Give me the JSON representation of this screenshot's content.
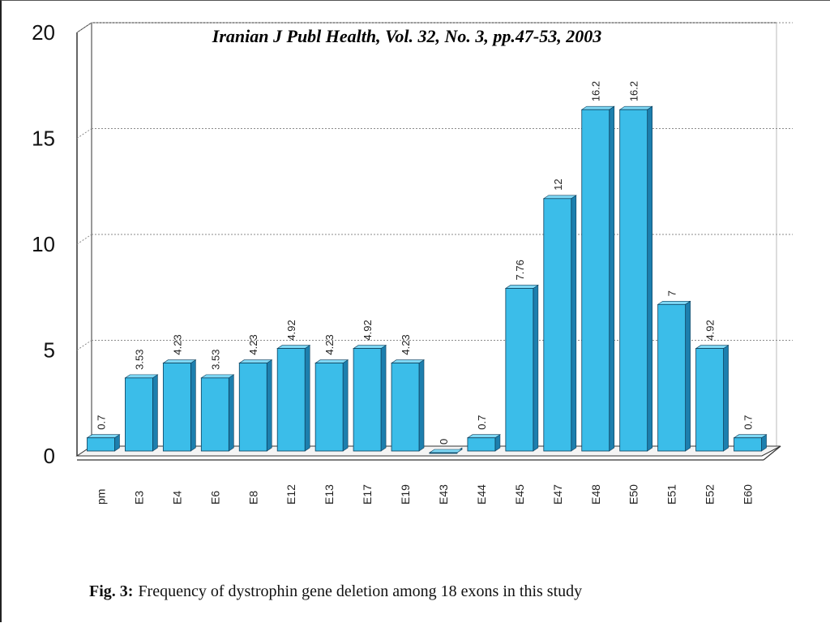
{
  "header": {
    "citation": "Iranian J Publ Health, Vol. 32, No. 3, pp.47-53, 2003"
  },
  "caption": {
    "label": "Fig. 3:",
    "text": "Frequency of dystrophin gene deletion among 18 exons in this study"
  },
  "colors": {
    "bar_front": "#3bbde9",
    "bar_top": "#7fd8f5",
    "bar_side": "#1d7fae",
    "bar_edge": "#0d3f5c",
    "grid": "#8a8a8a",
    "axis": "#333333"
  },
  "chart_data": {
    "type": "bar",
    "categories": [
      "pm",
      "E3",
      "E4",
      "E6",
      "E8",
      "E12",
      "E13",
      "E17",
      "E19",
      "E43",
      "E44",
      "E45",
      "E47",
      "E48",
      "E50",
      "E51",
      "E52",
      "E60"
    ],
    "values": [
      0.7,
      3.53,
      4.23,
      3.53,
      4.23,
      4.92,
      4.23,
      4.92,
      4.23,
      0,
      0.7,
      7.76,
      12,
      16.2,
      16.2,
      7,
      4.92,
      0.7
    ],
    "value_labels": [
      "0.7",
      "3.53",
      "4.23",
      "3.53",
      "4.23",
      "4.92",
      "4.23",
      "4.92",
      "4.23",
      "0",
      "0.7",
      "7.76",
      "12",
      "16.2",
      "16.2",
      "7",
      "4.92",
      "0.7"
    ],
    "ylim": [
      0,
      20
    ],
    "yticks": [
      "0",
      "5",
      "10",
      "15",
      "20"
    ],
    "grid": true,
    "style": "3d"
  }
}
